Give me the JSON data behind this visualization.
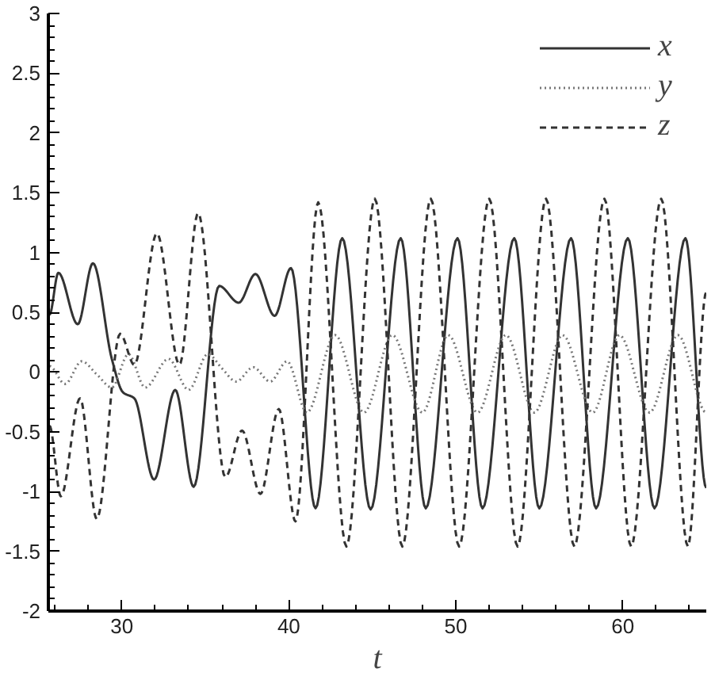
{
  "chart_data": {
    "type": "line",
    "xlabel": "t",
    "xlim": [
      25.6,
      65
    ],
    "ylim": [
      -2,
      3
    ],
    "xticks": [
      30,
      40,
      50,
      60
    ],
    "yticks": [
      -2,
      -1.5,
      -1,
      -0.5,
      0,
      0.5,
      1,
      1.5,
      2,
      2.5,
      3
    ],
    "grid": false,
    "legend": "top right",
    "marker": "none",
    "series": [
      {
        "name": "x",
        "color": "#333333",
        "line_style": "solid",
        "x": [
          25.67,
          26.2,
          27.36,
          28.27,
          29.4,
          30.07,
          30.75,
          31.93,
          33.2,
          34.3,
          35.83,
          37.0,
          38.0,
          39.15,
          40.13,
          41.6,
          43.2,
          44.9,
          46.7,
          48.2,
          50.1,
          51.6,
          53.5,
          55.0,
          56.9,
          58.4,
          60.3,
          61.9,
          63.75,
          65.0
        ],
        "values": [
          0.48,
          0.83,
          0.4,
          0.91,
          0.11,
          -0.17,
          -0.22,
          -0.9,
          -0.15,
          -0.96,
          0.72,
          0.58,
          0.82,
          0.47,
          0.87,
          -1.14,
          1.12,
          -1.15,
          1.12,
          -1.14,
          1.12,
          -1.14,
          1.12,
          -1.14,
          1.12,
          -1.14,
          1.12,
          -1.14,
          1.12,
          -0.97
        ]
      },
      {
        "name": "y",
        "color": "#777777",
        "line_style": "dotted",
        "x": [
          25.67,
          26.6,
          27.6,
          28.5,
          29.4,
          30.4,
          31.4,
          32.8,
          34.0,
          35.15,
          36.0,
          36.85,
          37.87,
          38.88,
          39.9,
          41.08,
          42.77,
          44.5,
          46.2,
          48.0,
          49.55,
          51.3,
          53.0,
          54.7,
          56.4,
          58.2,
          59.8,
          61.6,
          63.3,
          65.0
        ],
        "values": [
          0.05,
          -0.1,
          0.09,
          -0.02,
          -0.13,
          0.15,
          -0.13,
          0.11,
          -0.15,
          0.15,
          0.03,
          -0.08,
          0.04,
          -0.08,
          0.09,
          -0.34,
          0.31,
          -0.34,
          0.31,
          -0.34,
          0.31,
          -0.34,
          0.31,
          -0.34,
          0.31,
          -0.34,
          0.31,
          -0.34,
          0.31,
          -0.34
        ]
      },
      {
        "name": "z",
        "color": "#333333",
        "line_style": "dashed",
        "x": [
          25.67,
          26.35,
          27.5,
          28.5,
          29.9,
          30.75,
          32.1,
          33.45,
          34.57,
          36.2,
          37.2,
          38.3,
          39.4,
          40.4,
          41.76,
          43.45,
          45.15,
          46.8,
          48.5,
          50.2,
          52.0,
          53.7,
          55.4,
          57.1,
          58.9,
          60.5,
          62.3,
          63.9,
          65.0
        ],
        "values": [
          -0.45,
          -1.04,
          -0.22,
          -1.23,
          0.32,
          0.06,
          1.16,
          0.06,
          1.33,
          -0.88,
          -0.49,
          -1.02,
          -0.31,
          -1.25,
          1.42,
          -1.46,
          1.45,
          -1.46,
          1.45,
          -1.46,
          1.45,
          -1.46,
          1.45,
          -1.46,
          1.45,
          -1.46,
          1.45,
          -1.46,
          0.67
        ]
      }
    ]
  }
}
